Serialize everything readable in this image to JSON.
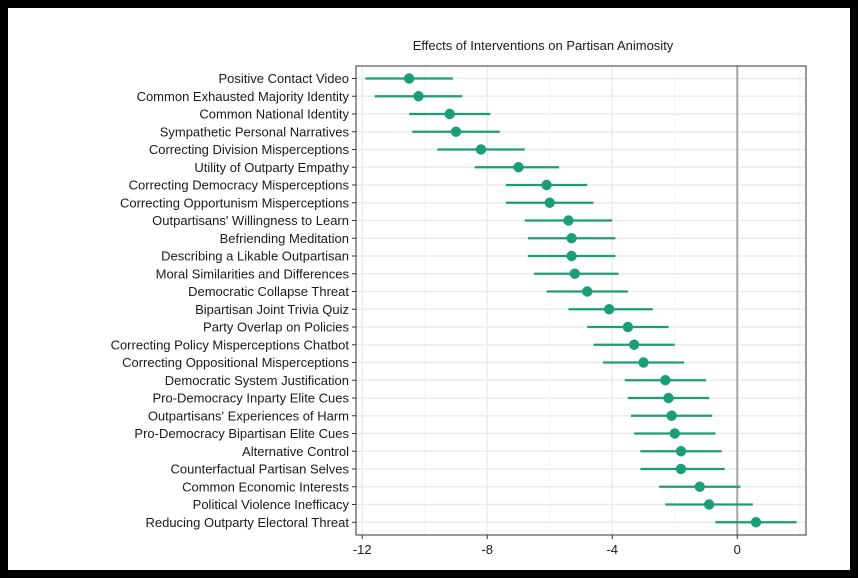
{
  "chart_data": {
    "type": "scatter",
    "title": "Effects of Interventions on Partisan Animosity",
    "xlabel": "",
    "ylabel": "",
    "xlim": [
      -12.2,
      2.2
    ],
    "xticks": [
      -12,
      -8,
      -4,
      0
    ],
    "xtick_labels": [
      "-12",
      "-8",
      "-4",
      "0"
    ],
    "reference_line": 0,
    "grid": true,
    "colors": {
      "point": "#1b9e77",
      "panel_border": "#333333",
      "grid_major": "#ebebeb",
      "grid_minor": "#f5f5f5",
      "reference_line": "#a6a6a6"
    },
    "series": [
      {
        "categories": [
          "Positive Contact Video",
          "Common Exhausted Majority Identity",
          "Common National Identity",
          "Sympathetic Personal Narratives",
          "Correcting Division Misperceptions",
          "Utility of Outparty Empathy",
          "Correcting Democracy Misperceptions",
          "Correcting Opportunism Misperceptions",
          "Outpartisans' Willingness to Learn",
          "Befriending Meditation",
          "Describing a Likable Outpartisan",
          "Moral Similarities and Differences",
          "Democratic Collapse Threat",
          "Bipartisan Joint Trivia Quiz",
          "Party Overlap on Policies",
          "Correcting Policy Misperceptions Chatbot",
          "Correcting Oppositional Misperceptions",
          "Democratic System Justification",
          "Pro-Democracy Inparty Elite Cues",
          "Outpartisans' Experiences of Harm",
          "Pro-Democracy Bipartisan Elite Cues",
          "Alternative Control",
          "Counterfactual Partisan Selves",
          "Common Economic Interests",
          "Political Violence Inefficacy",
          "Reducing Outparty Electoral Threat"
        ],
        "estimates": [
          -10.5,
          -10.2,
          -9.2,
          -9.0,
          -8.2,
          -7.0,
          -6.1,
          -6.0,
          -5.4,
          -5.3,
          -5.3,
          -5.2,
          -4.8,
          -4.1,
          -3.5,
          -3.3,
          -3.0,
          -2.3,
          -2.2,
          -2.1,
          -2.0,
          -1.8,
          -1.8,
          -1.2,
          -0.9,
          0.6
        ],
        "ci_low": [
          -11.9,
          -11.6,
          -10.5,
          -10.4,
          -9.6,
          -8.4,
          -7.4,
          -7.4,
          -6.8,
          -6.7,
          -6.7,
          -6.5,
          -6.1,
          -5.4,
          -4.8,
          -4.6,
          -4.3,
          -3.6,
          -3.5,
          -3.4,
          -3.3,
          -3.1,
          -3.1,
          -2.5,
          -2.3,
          -0.7
        ],
        "ci_high": [
          -9.1,
          -8.8,
          -7.9,
          -7.6,
          -6.8,
          -5.7,
          -4.8,
          -4.6,
          -4.0,
          -3.9,
          -3.9,
          -3.8,
          -3.5,
          -2.7,
          -2.2,
          -2.0,
          -1.7,
          -1.0,
          -0.9,
          -0.8,
          -0.7,
          -0.5,
          -0.4,
          0.1,
          0.5,
          1.9
        ]
      }
    ]
  }
}
